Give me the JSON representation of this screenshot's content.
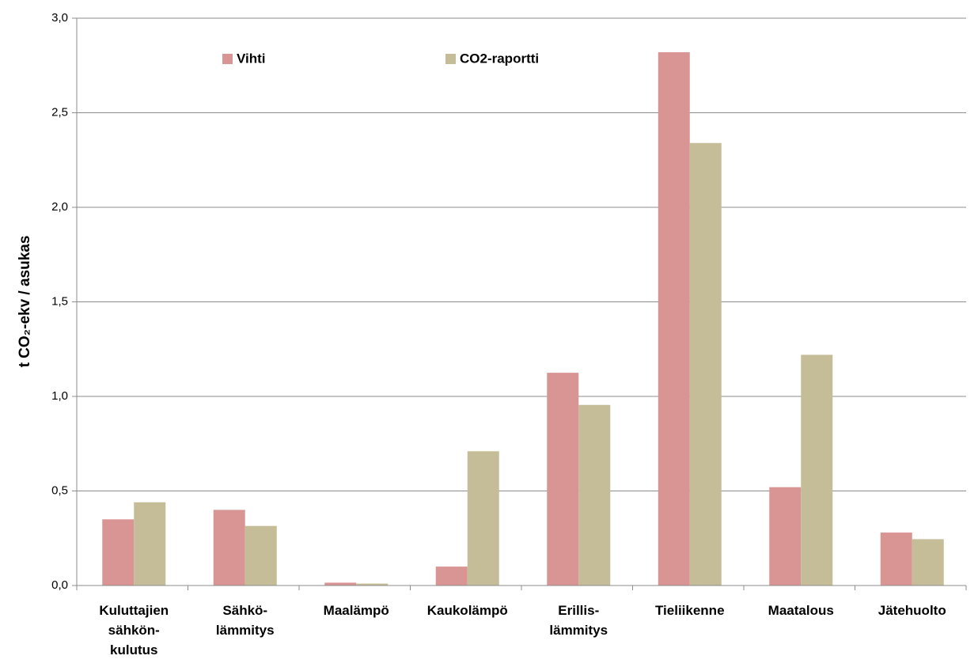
{
  "chart_data": {
    "type": "bar",
    "y_label": "t CO₂-ekv / asukas",
    "categories": [
      "Kuluttajien\nsähkön-\nkulutus",
      "Sähkö-\nlämmitys",
      "Maalämpö",
      "Kaukolämpö",
      "Erillis-\nlämmitys",
      "Tieliikenne",
      "Maatalous",
      "Jätehuolto"
    ],
    "series": [
      {
        "name": "Vihti",
        "color": "#d99594",
        "values": [
          0.35,
          0.4,
          0.015,
          0.1,
          1.125,
          2.82,
          0.52,
          0.28
        ]
      },
      {
        "name": "CO2-raportti",
        "color": "#c4bd97",
        "values": [
          0.44,
          0.315,
          0.01,
          0.71,
          0.955,
          2.34,
          1.22,
          0.245
        ]
      }
    ],
    "ylim": [
      0,
      3
    ],
    "yticks": [
      {
        "value": 0,
        "label": "0,0"
      },
      {
        "value": 0.5,
        "label": "0,5"
      },
      {
        "value": 1,
        "label": "1,0"
      },
      {
        "value": 1.5,
        "label": "1,5"
      },
      {
        "value": 2,
        "label": "2,0"
      },
      {
        "value": 2.5,
        "label": "2,5"
      },
      {
        "value": 3,
        "label": "3,0"
      }
    ],
    "grid": true,
    "legend": "top"
  }
}
